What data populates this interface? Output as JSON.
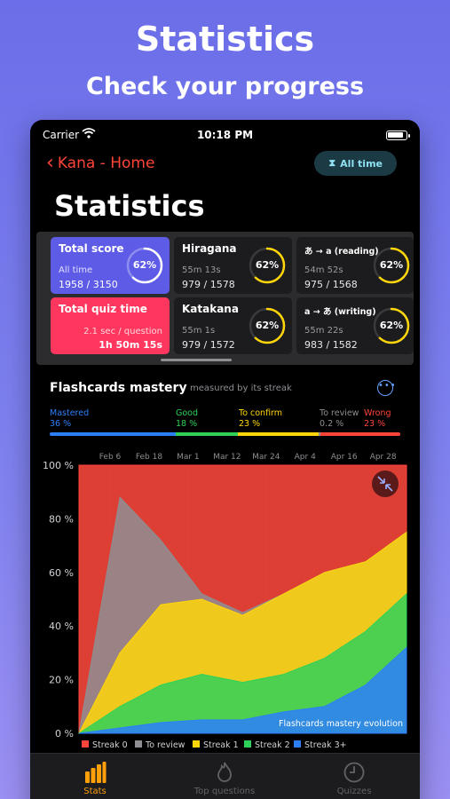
{
  "promo": {
    "title": "Statistics",
    "subtitle": "Check your progress"
  },
  "statusbar": {
    "carrier": "Carrier",
    "time": "10:18 PM"
  },
  "nav": {
    "back_label": "Kana - Home",
    "period_label": "All time"
  },
  "page": {
    "title": "Statistics"
  },
  "cards": {
    "total_score": {
      "title": "Total score",
      "sub": "All time",
      "value": "1958 / 3150",
      "percent": "62%",
      "fraction": 0.62
    },
    "total_quiz_time": {
      "title": "Total quiz time",
      "sub": "2.1 sec / question",
      "value": "1h 50m 15s"
    },
    "hiragana": {
      "title": "Hiragana",
      "sub": "55m 13s",
      "value": "979 / 1578",
      "percent": "62%",
      "fraction": 0.62
    },
    "katakana": {
      "title": "Katakana",
      "sub": "55m 1s",
      "value": "979 / 1572",
      "percent": "62%",
      "fraction": 0.62
    },
    "reading": {
      "title": "あ → a (reading)",
      "sub": "54m 52s",
      "value": "975 / 1568",
      "percent": "62%",
      "fraction": 0.62
    },
    "writing": {
      "title": "a → あ (writing)",
      "sub": "55m 22s",
      "value": "983 / 1582",
      "percent": "62%",
      "fraction": 0.62
    }
  },
  "mastery": {
    "title": "Flashcards mastery",
    "caption": "measured by its streak",
    "legend": [
      {
        "label": "Mastered",
        "pct": "36 %",
        "color": "#2d7ff9",
        "share": 0.36
      },
      {
        "label": "Good",
        "pct": "18 %",
        "color": "#30d158",
        "share": 0.18
      },
      {
        "label": "To confirm",
        "pct": "23 %",
        "color": "#ffd60a",
        "share": 0.23
      },
      {
        "label": "To review",
        "pct": "0.2 %",
        "color": "#8e8e93",
        "share": 0.002
      },
      {
        "label": "Wrong",
        "pct": "23 %",
        "color": "#ff453a",
        "share": 0.23
      }
    ]
  },
  "chart_data": {
    "type": "area",
    "title": "Flashcards mastery evolution",
    "x_ticks": [
      "Feb 6",
      "Feb 18",
      "Mar 1",
      "Mar 12",
      "Mar 24",
      "Apr 4",
      "Apr 16",
      "Apr 28"
    ],
    "y_ticks": [
      "100 %",
      "80 %",
      "60 %",
      "40 %",
      "20 %",
      "0 %"
    ],
    "ylim": [
      0,
      100
    ],
    "stacked_boundaries_note": "cumulative upper edges of each band, % of flashcards",
    "x": [
      "Jan 28",
      "Feb 6",
      "Feb 18",
      "Mar 1",
      "Mar 12",
      "Mar 24",
      "Apr 4",
      "Apr 16",
      "Apr 28"
    ],
    "series": [
      {
        "name": "Streak 3+",
        "color": "#2d7ff9",
        "values": [
          0,
          2,
          4,
          5,
          5,
          8,
          10,
          18,
          32
        ]
      },
      {
        "name": "Streak 2",
        "color": "#30d158",
        "values": [
          0,
          10,
          18,
          22,
          19,
          22,
          28,
          38,
          52
        ]
      },
      {
        "name": "Streak 1",
        "color": "#ffd60a",
        "values": [
          0,
          30,
          48,
          50,
          44,
          52,
          60,
          64,
          75
        ]
      },
      {
        "name": "To review",
        "color": "#8e8e93",
        "values": [
          0,
          88,
          72,
          52,
          45,
          52,
          60,
          64,
          75
        ]
      },
      {
        "name": "Streak 0",
        "color": "#ff453a",
        "values": [
          100,
          100,
          100,
          100,
          100,
          100,
          100,
          100,
          100
        ]
      }
    ]
  },
  "tabs": [
    {
      "label": "Stats",
      "active": true
    },
    {
      "label": "Top questions",
      "active": false
    },
    {
      "label": "Quizzes",
      "active": false
    }
  ],
  "colors": {
    "accent_red": "#ff453a",
    "accent_orange": "#ff9f0a",
    "ring_yellow": "#ffd60a",
    "score_blue": "#5e5ce6",
    "quiz_pink": "#ff375f"
  }
}
